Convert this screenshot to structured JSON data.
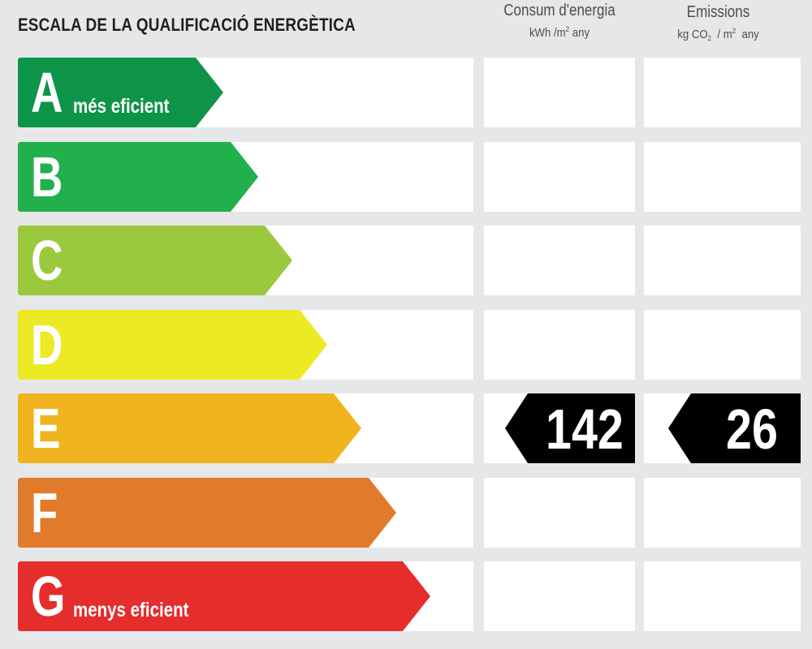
{
  "title": "ESCALA DE LA QUALIFICACIÓ ENERGÈTICA",
  "columns": {
    "consum": {
      "title": "Consum d'energia",
      "unit_pre": "kWh /m",
      "unit_exp": "2",
      "unit_post": " any"
    },
    "emissions": {
      "title": "Emissions",
      "unit_pre": "kg CO",
      "unit_sub": "2",
      "unit_mid": "  / m",
      "unit_exp": "2",
      "unit_post": "  any"
    }
  },
  "ratings": [
    {
      "letter": "A",
      "sublabel": "més eficient",
      "color": "#0e9448"
    },
    {
      "letter": "B",
      "sublabel": "",
      "color": "#21b04b"
    },
    {
      "letter": "C",
      "sublabel": "",
      "color": "#9ac93d"
    },
    {
      "letter": "D",
      "sublabel": "",
      "color": "#ecea25"
    },
    {
      "letter": "E",
      "sublabel": "",
      "color": "#f0b41e"
    },
    {
      "letter": "F",
      "sublabel": "",
      "color": "#e17a2b"
    },
    {
      "letter": "G",
      "sublabel": "menys eficient",
      "color": "#e52d2c"
    }
  ],
  "current": {
    "rating": "E",
    "consum_value": "142",
    "emissions_value": "26"
  }
}
